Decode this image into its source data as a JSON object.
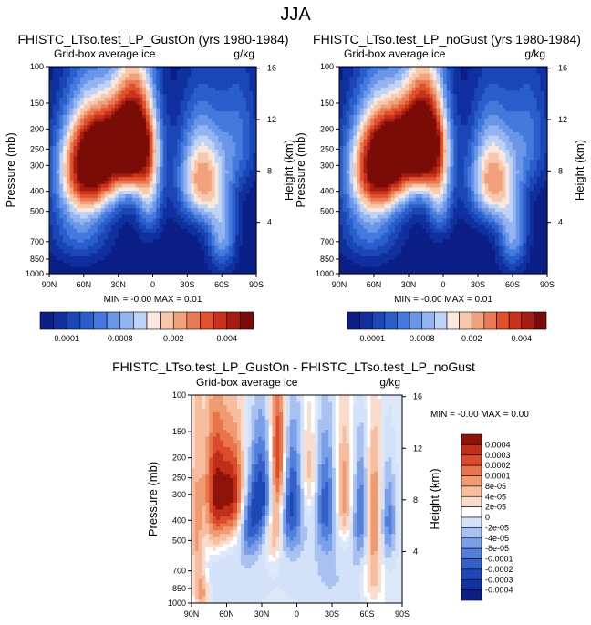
{
  "page_title": "JJA",
  "colors": {
    "left_scale": [
      "#0b1f86",
      "#10309f",
      "#1a46b6",
      "#2a5fcb",
      "#4479dd",
      "#6a96e8",
      "#93b4f0",
      "#bed3f6",
      "#fbe8dc",
      "#f7c8ac",
      "#f1a27d",
      "#ea7a53",
      "#e0512c",
      "#c9311a",
      "#a51c10",
      "#7a0c07"
    ],
    "diff_scale": [
      "#0b1f86",
      "#12329f",
      "#1e48b5",
      "#3461c9",
      "#527fdc",
      "#7a9fe8",
      "#a7c1f1",
      "#d3e2f8",
      "#ffffff",
      "#fadccc",
      "#f6bd9f",
      "#f09a72",
      "#e8744c",
      "#da4c2b",
      "#bf2f19",
      "#8e1409"
    ]
  },
  "chart_data": [
    {
      "type": "heatmap",
      "title": "FHISTC_LTso.test_LP_GustOn (yrs 1980-1984)",
      "subtitle_left": "Grid-box average ice",
      "units": "g/kg",
      "ylabel": "Pressure (mb)",
      "ylabel_right": "Height (km)",
      "x_ticks": [
        "90N",
        "60N",
        "30N",
        "0",
        "30S",
        "60S",
        "90S"
      ],
      "xlim": [
        90,
        -90
      ],
      "y_ticks": [
        "100",
        "150",
        "200",
        "250",
        "300",
        "400",
        "500",
        "700",
        "850",
        "1000"
      ],
      "y_tick_values": [
        100,
        150,
        200,
        250,
        300,
        400,
        500,
        700,
        850,
        1000
      ],
      "ylim": [
        1000,
        100
      ],
      "height_ticks": [
        "16",
        "12",
        "8",
        "4"
      ],
      "height_tick_values": [
        16,
        12,
        8,
        4
      ],
      "stats": "MIN = -0.00   MAX =  0.01",
      "colorbar": {
        "orientation": "horizontal",
        "tick_labels": [
          "0.0001",
          "0.0008",
          "0.002",
          "0.004"
        ],
        "tick_after_bin": [
          1,
          5,
          9,
          13
        ]
      },
      "features": [
        {
          "lat": 53,
          "p": 300,
          "amp": 15.5,
          "sx": 19,
          "sy": 120
        },
        {
          "lat": 16,
          "p": 225,
          "amp": 15.5,
          "sx": 13,
          "sy": 110
        },
        {
          "lat": 35,
          "p": 230,
          "amp": 7,
          "sx": 18,
          "sy": 60
        },
        {
          "lat": -42,
          "p": 345,
          "amp": 10.5,
          "sx": 14,
          "sy": 140
        },
        {
          "lat": -60,
          "p": 650,
          "amp": 6,
          "sx": 9,
          "sy": 200
        },
        {
          "lat": 3,
          "p": 420,
          "amp": 6,
          "sx": 8,
          "sy": 150
        },
        {
          "lat": 63,
          "p": 560,
          "amp": 5,
          "sx": 18,
          "sy": 200
        },
        {
          "lat": -75,
          "p": 220,
          "amp": 4,
          "sx": 12,
          "sy": 110
        }
      ]
    },
    {
      "type": "heatmap",
      "title": "FHISTC_LTso.test_LP_noGust (yrs 1980-1984)",
      "subtitle_left": "Grid-box average ice",
      "units": "g/kg",
      "ylabel": "Pressure (mb)",
      "ylabel_right": "Height (km)",
      "x_ticks": [
        "90N",
        "60N",
        "30N",
        "0",
        "30S",
        "60S",
        "90S"
      ],
      "xlim": [
        90,
        -90
      ],
      "y_ticks": [
        "100",
        "150",
        "200",
        "250",
        "300",
        "400",
        "500",
        "700",
        "850",
        "1000"
      ],
      "y_tick_values": [
        100,
        150,
        200,
        250,
        300,
        400,
        500,
        700,
        850,
        1000
      ],
      "ylim": [
        1000,
        100
      ],
      "height_ticks": [
        "16",
        "12",
        "8",
        "4"
      ],
      "height_tick_values": [
        16,
        12,
        8,
        4
      ],
      "stats": "MIN = -0.00   MAX =  0.01",
      "colorbar": {
        "orientation": "horizontal",
        "tick_labels": [
          "0.0001",
          "0.0008",
          "0.002",
          "0.004"
        ],
        "tick_after_bin": [
          1,
          5,
          9,
          13
        ]
      },
      "features": [
        {
          "lat": 53,
          "p": 300,
          "amp": 15.5,
          "sx": 19,
          "sy": 120
        },
        {
          "lat": 16,
          "p": 225,
          "amp": 15.5,
          "sx": 13,
          "sy": 110
        },
        {
          "lat": 35,
          "p": 230,
          "amp": 7,
          "sx": 18,
          "sy": 60
        },
        {
          "lat": -42,
          "p": 345,
          "amp": 10.5,
          "sx": 14,
          "sy": 140
        },
        {
          "lat": -60,
          "p": 650,
          "amp": 6,
          "sx": 9,
          "sy": 200
        },
        {
          "lat": 3,
          "p": 420,
          "amp": 6,
          "sx": 8,
          "sy": 150
        },
        {
          "lat": 63,
          "p": 560,
          "amp": 5,
          "sx": 18,
          "sy": 200
        },
        {
          "lat": -75,
          "p": 220,
          "amp": 4,
          "sx": 12,
          "sy": 110
        }
      ]
    },
    {
      "type": "heatmap",
      "title": "FHISTC_LTso.test_LP_GustOn - FHISTC_LTso.test_LP_noGust",
      "subtitle_left": "Grid-box average ice",
      "units": "g/kg",
      "ylabel": "Pressure (mb)",
      "ylabel_right": "Height (km)",
      "x_ticks": [
        "90N",
        "60N",
        "30N",
        "0",
        "30S",
        "60S",
        "90S"
      ],
      "xlim": [
        90,
        -90
      ],
      "y_ticks": [
        "100",
        "150",
        "200",
        "250",
        "300",
        "400",
        "500",
        "700",
        "850",
        "1000"
      ],
      "y_tick_values": [
        100,
        150,
        200,
        250,
        300,
        400,
        500,
        700,
        850,
        1000
      ],
      "ylim": [
        1000,
        100
      ],
      "height_ticks": [
        "16",
        "12",
        "8",
        "4"
      ],
      "height_tick_values": [
        16,
        12,
        8,
        4
      ],
      "stats": "MIN = -0.00   MAX =  0.00",
      "colorbar": {
        "orientation": "vertical",
        "tick_labels": [
          "0.0004",
          "0.0003",
          "0.0002",
          "0.0001",
          "8e-05",
          "4e-05",
          "2e-05",
          "0",
          "-2e-05",
          "-4e-05",
          "-8e-05",
          "-0.0001",
          "-0.0002",
          "-0.0003",
          "-0.0004"
        ]
      },
      "features": [
        {
          "lat": 70,
          "p": 290,
          "amp": 6,
          "sx": 6,
          "sy": 150
        },
        {
          "lat": 55,
          "p": 300,
          "amp": 7,
          "sx": 8,
          "sy": 120
        },
        {
          "lat": 30,
          "p": 300,
          "amp": -6,
          "sx": 8,
          "sy": 140
        },
        {
          "lat": 16,
          "p": 210,
          "amp": 8,
          "sx": 5,
          "sy": 120
        },
        {
          "lat": 5,
          "p": 320,
          "amp": -6,
          "sx": 8,
          "sy": 160
        },
        {
          "lat": 20,
          "p": 460,
          "amp": 4,
          "sx": 5,
          "sy": 100
        },
        {
          "lat": 42,
          "p": 420,
          "amp": -4,
          "sx": 6,
          "sy": 120
        },
        {
          "lat": -10,
          "p": 240,
          "amp": 3,
          "sx": 5,
          "sy": 100
        },
        {
          "lat": -25,
          "p": 330,
          "amp": -5,
          "sx": 7,
          "sy": 160
        },
        {
          "lat": -40,
          "p": 300,
          "amp": 4,
          "sx": 6,
          "sy": 130
        },
        {
          "lat": -55,
          "p": 360,
          "amp": -5,
          "sx": 6,
          "sy": 160
        },
        {
          "lat": -65,
          "p": 380,
          "amp": 5,
          "sx": 5,
          "sy": 180
        },
        {
          "lat": -78,
          "p": 400,
          "amp": -4,
          "sx": 5,
          "sy": 150
        },
        {
          "lat": 85,
          "p": 500,
          "amp": 3,
          "sx": 4,
          "sy": 350
        },
        {
          "lat": 80,
          "p": 900,
          "amp": 3,
          "sx": 4,
          "sy": 150
        },
        {
          "lat": -65,
          "p": 780,
          "amp": 2,
          "sx": 6,
          "sy": 150
        },
        {
          "lat": 60,
          "p": 800,
          "amp": -1.5,
          "sx": 25,
          "sy": 250
        },
        {
          "lat": -30,
          "p": 800,
          "amp": -1.5,
          "sx": 25,
          "sy": 250
        }
      ]
    }
  ]
}
